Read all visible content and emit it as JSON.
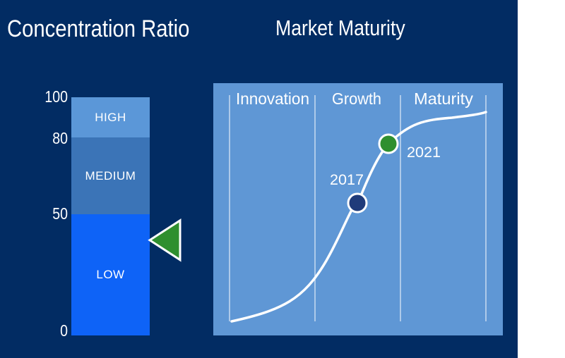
{
  "titles": {
    "left": "Concentration Ratio",
    "right": "Market Maturity"
  },
  "concentration": {
    "ticks": [
      "100",
      "80",
      "50",
      "0"
    ],
    "bands": [
      {
        "label": "HIGH",
        "color": "#5b97d8"
      },
      {
        "label": "MEDIUM",
        "color": "#3b74b7"
      },
      {
        "label": "LOW",
        "color": "#0e63f7"
      }
    ],
    "indicator_value": 40,
    "indicator_color": "#2f8f2f"
  },
  "maturity": {
    "phases": [
      "Innovation",
      "Growth",
      "Maturity"
    ],
    "markers": [
      {
        "label": "2017",
        "color": "#1f3b7a"
      },
      {
        "label": "2021",
        "color": "#2f8f2f"
      }
    ],
    "panel_color": "#5f97d5"
  }
}
